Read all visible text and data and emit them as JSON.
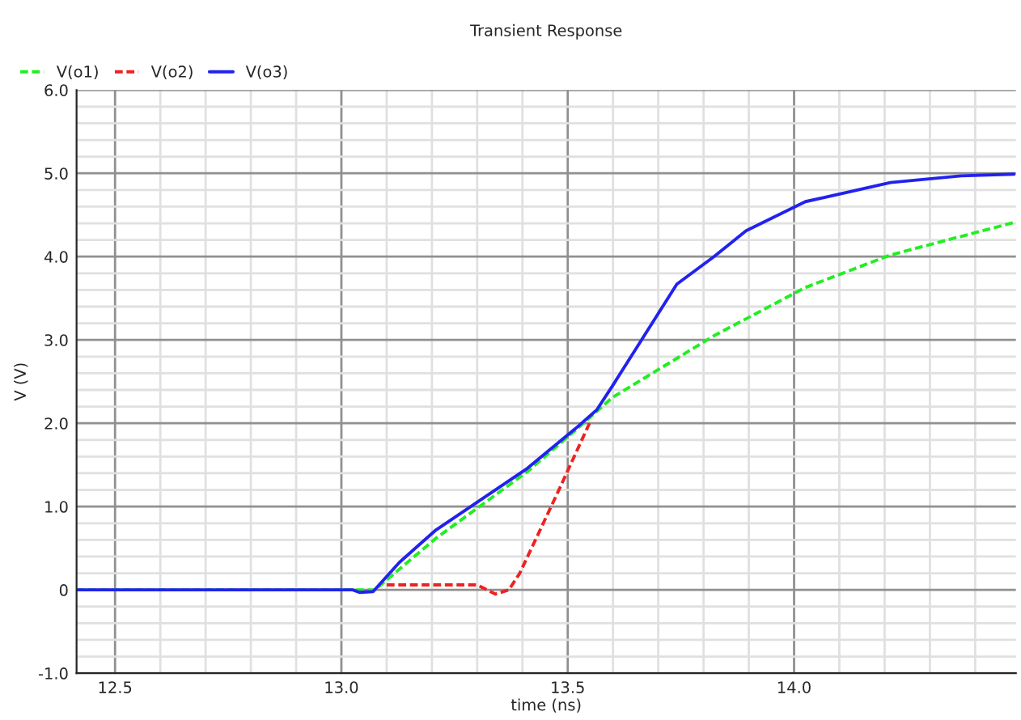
{
  "chart_data": {
    "type": "line",
    "title": "Transient Response",
    "xlabel": "time (ns)",
    "ylabel": "V (V)",
    "xlim": [
      12.415,
      14.49
    ],
    "xticks": [
      {
        "value": 12.5,
        "label": "12.5"
      },
      {
        "value": 13.0,
        "label": "13.0"
      },
      {
        "value": 13.5,
        "label": "13.5"
      },
      {
        "value": 14.0,
        "label": "14.0"
      }
    ],
    "ylim": [
      -1.0,
      6.0
    ],
    "yticks": [
      {
        "value": -1.0,
        "label": "-1.0"
      },
      0,
      {
        "value": 1.0,
        "label": "1.0"
      },
      {
        "value": 2.0,
        "label": "2.0"
      },
      {
        "value": 3.0,
        "label": "3.0"
      },
      {
        "value": 4.0,
        "label": "4.0"
      },
      {
        "value": 5.0,
        "label": "5.0"
      },
      {
        "value": 6.0,
        "label": "6.0"
      }
    ],
    "grid": true,
    "legend": "top left",
    "series": [
      {
        "name": "V(o1)",
        "color": "#22ee22",
        "line_style": "dashed",
        "x": [
          12.415,
          13.074,
          13.209,
          13.411,
          13.518,
          13.599,
          13.823,
          14.025,
          14.213,
          14.486
        ],
        "values": [
          0,
          0,
          0.62,
          1.42,
          1.92,
          2.31,
          3.05,
          3.63,
          4.02,
          4.41
        ]
      },
      {
        "name": "V(o2)",
        "color": "#ee2222",
        "line_style": "dashed",
        "x": [
          13.1,
          13.3,
          13.34,
          13.37,
          13.394,
          13.478,
          13.548
        ],
        "values": [
          0.06,
          0.06,
          -0.05,
          0,
          0.2,
          1.17,
          2.0
        ]
      },
      {
        "name": "V(o3)",
        "color": "#2222ee",
        "line_style": "solid",
        "x": [
          12.415,
          13.025,
          13.04,
          13.07,
          13.128,
          13.209,
          13.305,
          13.411,
          13.518,
          13.564,
          13.599,
          13.663,
          13.741,
          13.823,
          13.894,
          14.025,
          14.213,
          14.369,
          14.486
        ],
        "values": [
          0,
          0,
          -0.03,
          -0.02,
          0.33,
          0.72,
          1.07,
          1.46,
          1.94,
          2.16,
          2.45,
          3.0,
          3.67,
          4.0,
          4.31,
          4.66,
          4.89,
          4.97,
          4.99
        ]
      }
    ]
  }
}
